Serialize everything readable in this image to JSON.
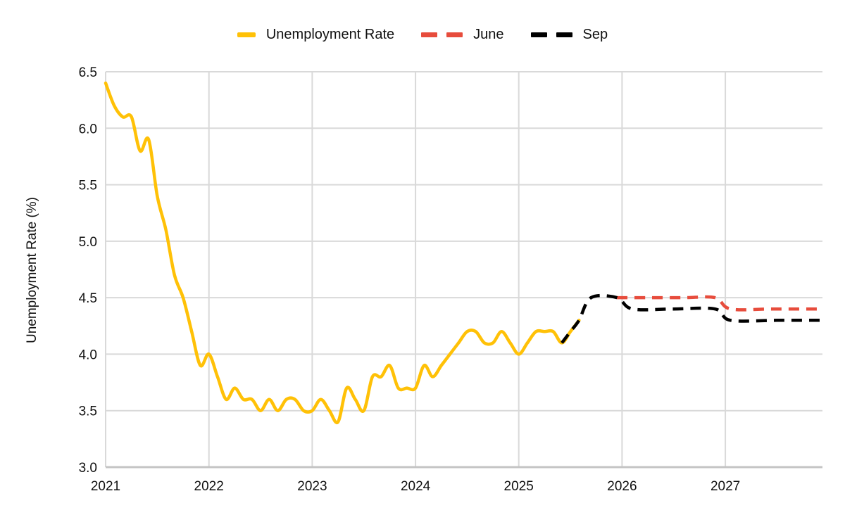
{
  "chart_data": {
    "type": "line",
    "title": "",
    "ylabel": "Unemployment Rate (%)",
    "xlabel": "",
    "x_range": [
      2021,
      2027.94
    ],
    "y_range": [
      3.0,
      6.5
    ],
    "yticks": {
      "values": [
        3.0,
        3.5,
        4.0,
        4.5,
        5.0,
        5.5,
        6.0,
        6.5
      ],
      "labels": [
        "3.0",
        "3.5",
        "4.0",
        "4.5",
        "5.0",
        "5.5",
        "6.0",
        "6.5"
      ]
    },
    "xticks": {
      "values": [
        2021,
        2022,
        2023,
        2024,
        2025,
        2026,
        2027
      ],
      "labels": [
        "2021",
        "2022",
        "2023",
        "2024",
        "2025",
        "2026",
        "2027"
      ]
    },
    "grid": true,
    "legend_position": "top",
    "colors": {
      "grid": "#d9d9d9",
      "axis_line": "#c4c4c4",
      "text": "#111111",
      "background": "#ffffff"
    },
    "series": [
      {
        "name": "Unemployment Rate",
        "color": "#ffc107",
        "dash": "solid",
        "x_interval": "monthly",
        "x_start": 2021,
        "values": [
          6.4,
          6.2,
          6.1,
          6.1,
          5.8,
          5.9,
          5.4,
          5.1,
          4.7,
          4.5,
          4.2,
          3.9,
          4.0,
          3.8,
          3.6,
          3.7,
          3.6,
          3.6,
          3.5,
          3.6,
          3.5,
          3.6,
          3.6,
          3.5,
          3.5,
          3.6,
          3.5,
          3.4,
          3.7,
          3.6,
          3.5,
          3.8,
          3.8,
          3.9,
          3.7,
          3.7,
          3.7,
          3.9,
          3.8,
          3.9,
          4.0,
          4.1,
          4.2,
          4.2,
          4.1,
          4.1,
          4.2,
          4.1,
          4.0,
          4.1,
          4.2,
          4.2,
          4.2,
          4.1,
          4.2,
          4.3
        ]
      },
      {
        "name": "June",
        "color": "#e74c3c",
        "dash": "dashed",
        "x": [
          2025.95,
          2026.25,
          2026.6,
          2026.9,
          2027.05,
          2027.45,
          2027.92
        ],
        "values": [
          4.5,
          4.5,
          4.5,
          4.5,
          4.4,
          4.4,
          4.4
        ]
      },
      {
        "name": "Sep",
        "color": "#000000",
        "dash": "dashed",
        "x": [
          2025.417,
          2025.5,
          2025.583,
          2025.7,
          2025.95,
          2026.1,
          2026.5,
          2026.9,
          2027.05,
          2027.5,
          2027.92
        ],
        "values": [
          4.1,
          4.2,
          4.3,
          4.5,
          4.5,
          4.4,
          4.4,
          4.4,
          4.3,
          4.3,
          4.3
        ]
      }
    ]
  }
}
